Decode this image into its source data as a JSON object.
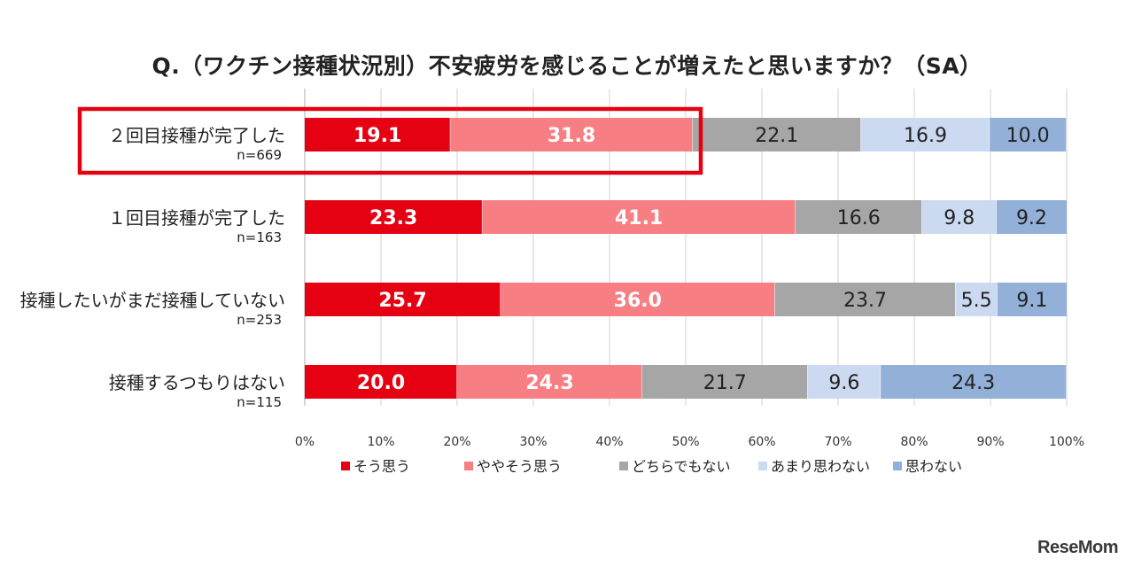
{
  "title": "Q.（ワクチン接種状況別）不安疲労を感じることが増えたと思いますか？（SA）",
  "chart_data": {
    "type": "bar",
    "orientation": "horizontal",
    "stacked": "100%",
    "title": "Q.（ワクチン接種状況別）不安疲労を感じることが増えたと思いますか？（SA）",
    "categories": [
      {
        "label": "２回目接種が完了した",
        "n": "n=669",
        "highlighted": true
      },
      {
        "label": "１回目接種が完了した",
        "n": "n=163"
      },
      {
        "label": "接種したいがまだ接種していない",
        "n": "n=253"
      },
      {
        "label": "接種するつもりはない",
        "n": "n=115"
      }
    ],
    "series": [
      {
        "name": "そう思う",
        "color": "#e50012",
        "label_color": "#ffffff",
        "label_bold": true,
        "values": [
          19.1,
          23.3,
          25.7,
          20.0
        ]
      },
      {
        "name": "ややそう思う",
        "color": "#f77f84",
        "label_color": "#ffffff",
        "label_bold": true,
        "values": [
          31.8,
          41.1,
          36.0,
          24.3
        ]
      },
      {
        "name": "どちらでもない",
        "color": "#a6a6a6",
        "label_color": "#222222",
        "label_bold": false,
        "values": [
          22.1,
          16.6,
          23.7,
          21.7
        ]
      },
      {
        "name": "あまり思わない",
        "color": "#cbdaf0",
        "label_color": "#222222",
        "label_bold": false,
        "values": [
          16.9,
          9.8,
          5.5,
          9.6
        ]
      },
      {
        "name": "思わない",
        "color": "#93b0d8",
        "label_color": "#222222",
        "label_bold": false,
        "values": [
          10.0,
          9.2,
          9.1,
          24.3
        ]
      }
    ],
    "x_ticks": [
      "0%",
      "10%",
      "20%",
      "30%",
      "40%",
      "50%",
      "60%",
      "70%",
      "80%",
      "90%",
      "100%"
    ],
    "xlim": [
      0,
      100
    ],
    "grid": true,
    "legend_position": "bottom",
    "highlight_color": "#e50012"
  },
  "brand": "ReseMom"
}
